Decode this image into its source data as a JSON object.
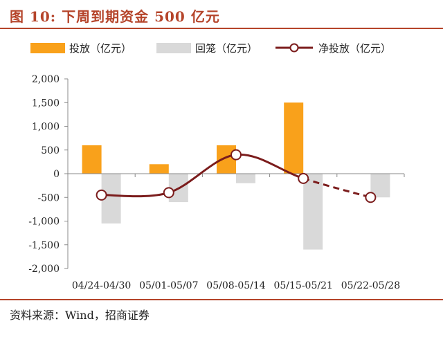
{
  "title": "图 10:  下周到期资金 500 亿元",
  "source": "资料来源：Wind，招商证券",
  "colors": {
    "accent": "#b5442a",
    "orange": "#f9a11b",
    "gray": "#d9d9d9",
    "line": "#7b1c1c"
  },
  "chart_data": {
    "type": "bar",
    "categories": [
      "04/24-04/30",
      "05/01-05/07",
      "05/08-05/14",
      "05/15-05/21",
      "05/22-05/28"
    ],
    "series": [
      {
        "name": "投放（亿元）",
        "kind": "bar",
        "values": [
          600,
          200,
          600,
          1500,
          null
        ]
      },
      {
        "name": "回笼（亿元）",
        "kind": "bar",
        "values": [
          -1050,
          -600,
          -200,
          -1600,
          -500
        ]
      },
      {
        "name": "净投放（亿元）",
        "kind": "line",
        "values": [
          -450,
          -400,
          400,
          -100,
          -500
        ],
        "dashed_from_index": 3
      }
    ],
    "yticks": [
      "2,000",
      "1,500",
      "1,000",
      "500",
      "0",
      "-500",
      "-1,000",
      "-1,500",
      "-2,000"
    ],
    "ylim": [
      -2000,
      2000
    ],
    "grid": false,
    "legend_position": "top"
  }
}
